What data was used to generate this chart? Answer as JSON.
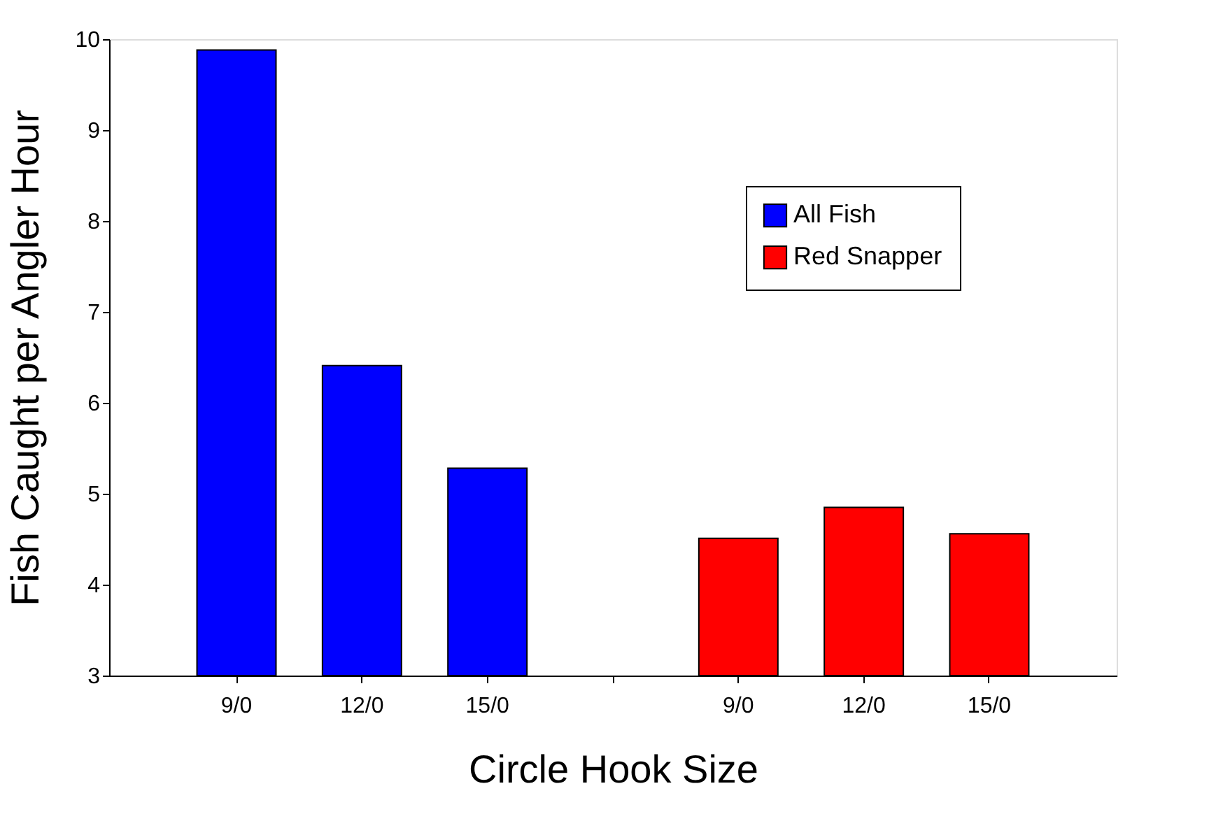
{
  "chart_data": {
    "type": "bar",
    "xlabel": "Circle Hook Size",
    "ylabel": "Fish Caught per Angler Hour",
    "categories": [
      "9/0",
      "12/0",
      "15/0",
      null,
      "9/0",
      "12/0",
      "15/0"
    ],
    "series": [
      {
        "name": "All Fish",
        "color": "#0000ff",
        "values": [
          9.88,
          6.41,
          5.28,
          null,
          null,
          null,
          null
        ]
      },
      {
        "name": "Red Snapper",
        "color": "#ff0000",
        "values": [
          null,
          null,
          null,
          null,
          4.51,
          4.85,
          4.56
        ]
      }
    ],
    "ylim": [
      3,
      10
    ],
    "yticks": [
      3,
      4,
      5,
      6,
      7,
      8,
      9,
      10
    ],
    "grid": false,
    "legend": "top right"
  }
}
